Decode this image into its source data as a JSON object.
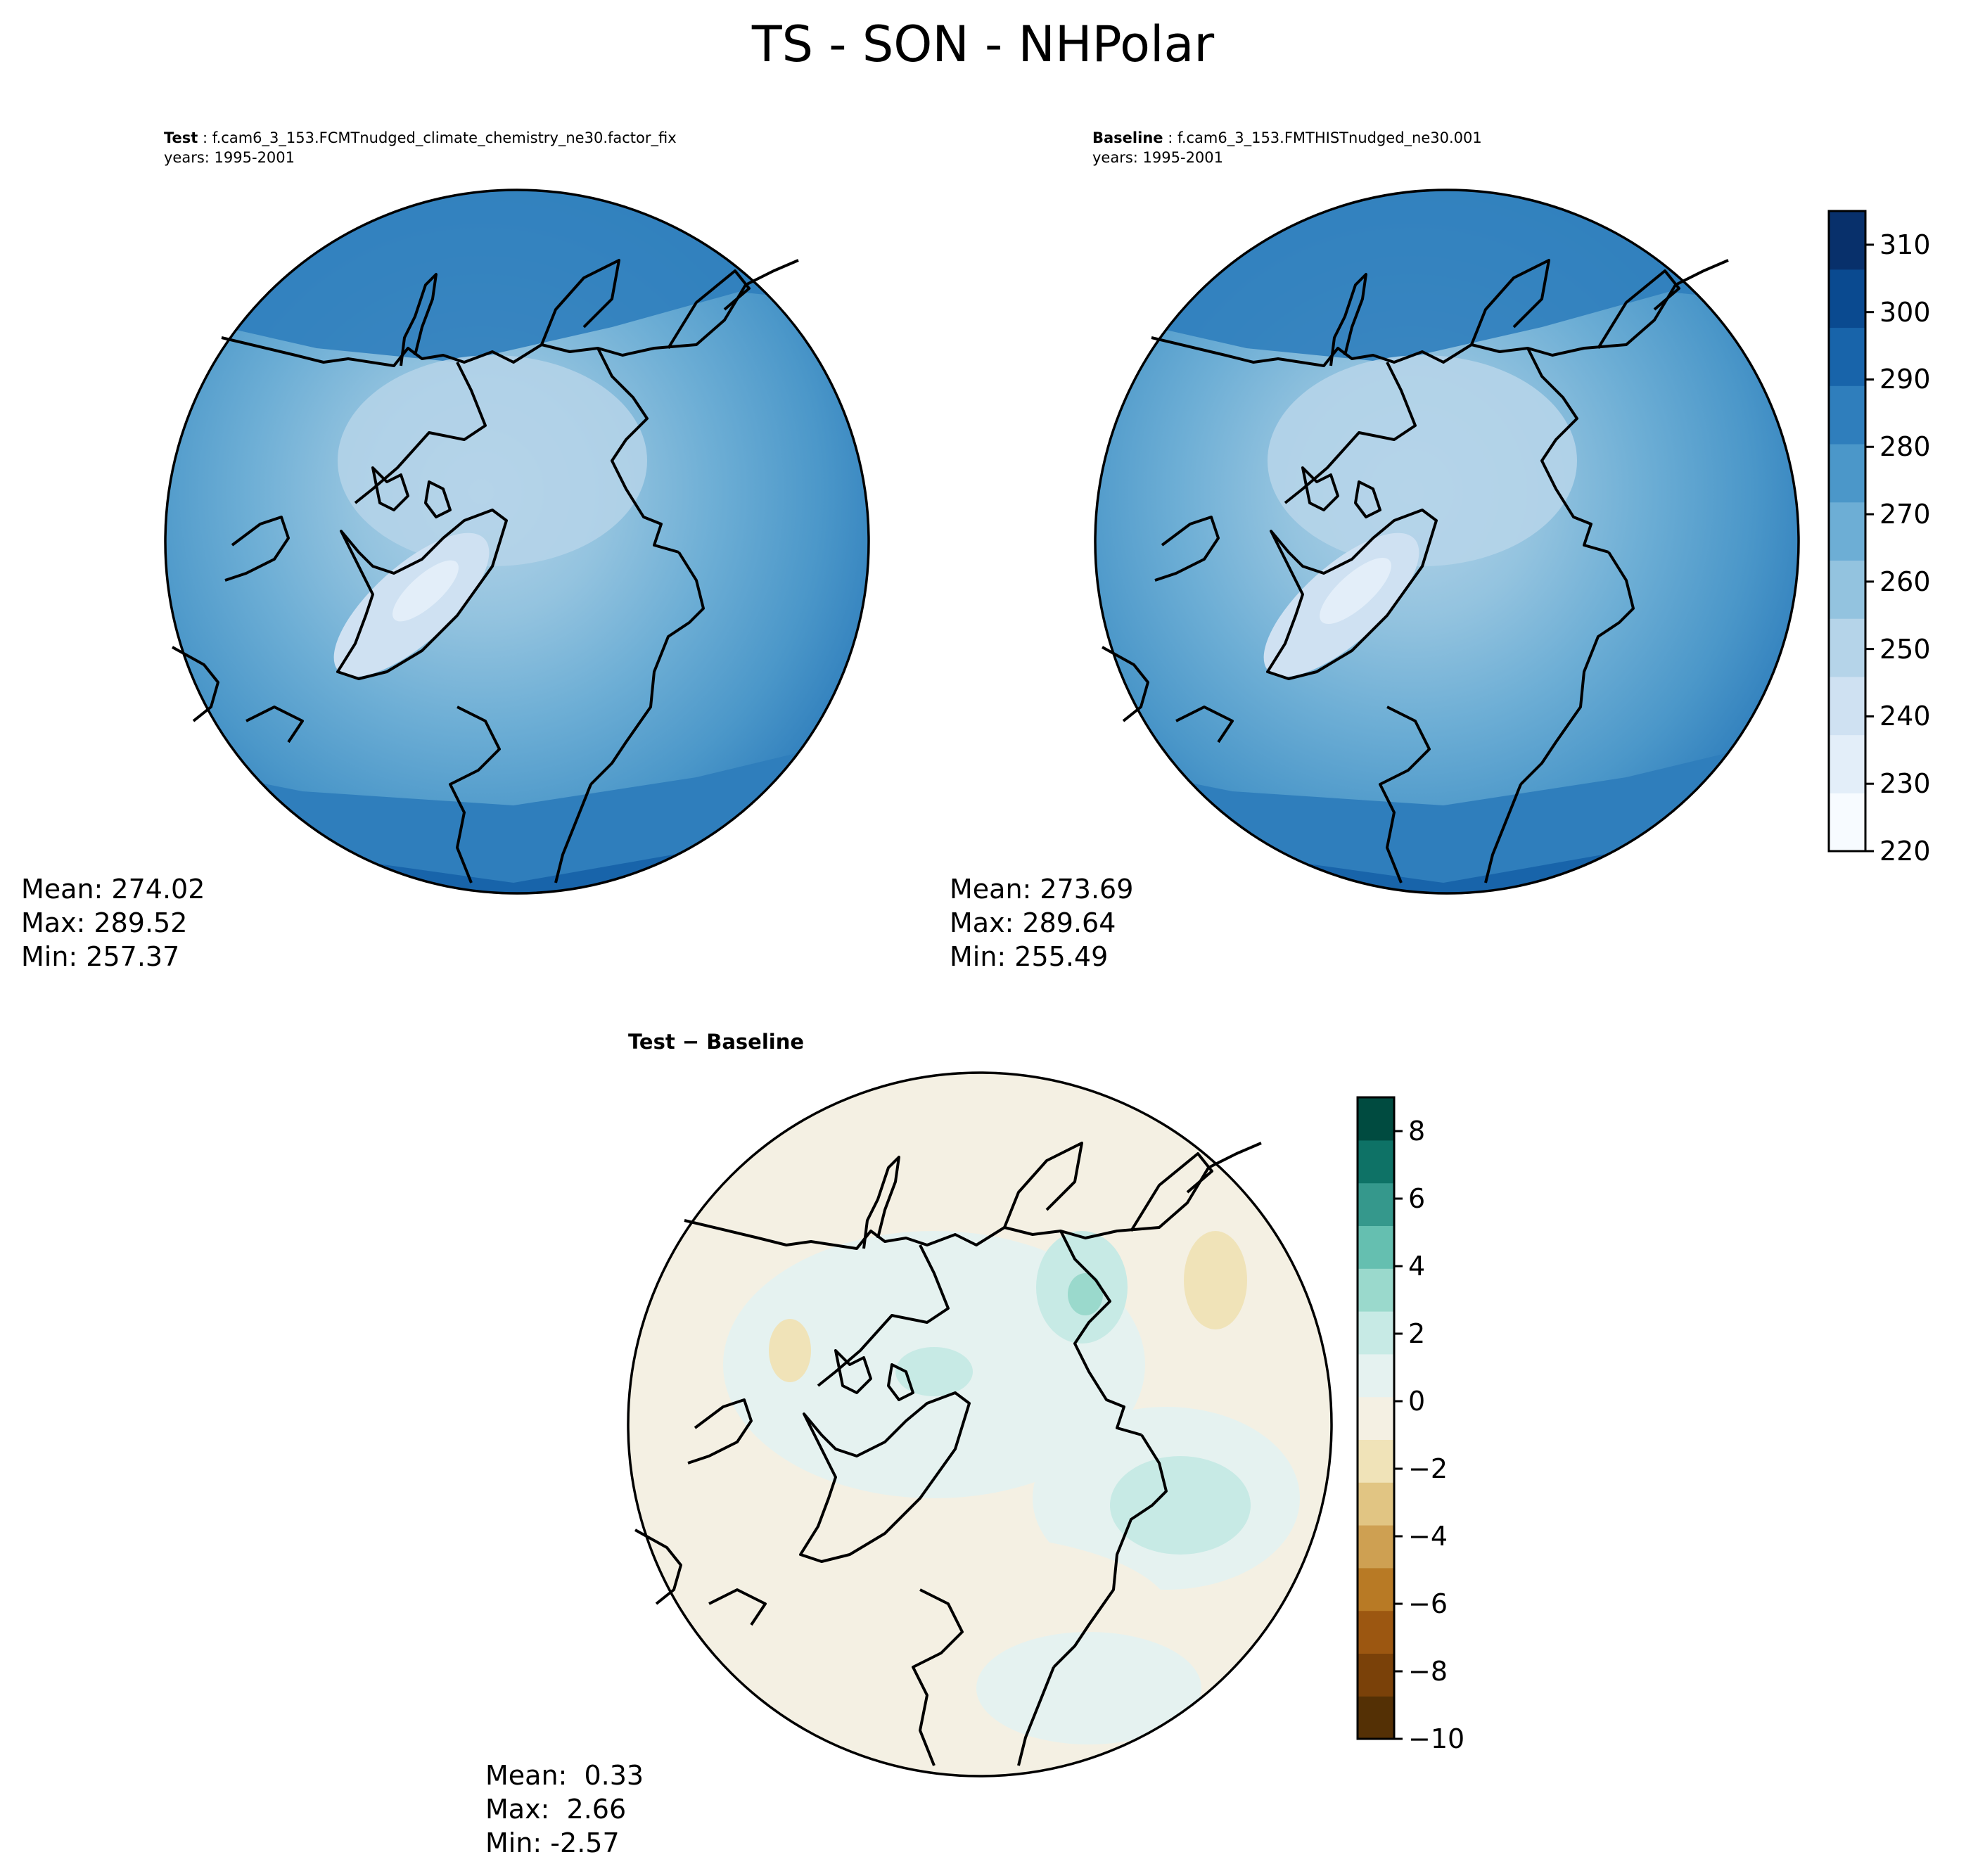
{
  "title": "TS - SON - NHPolar",
  "panels": {
    "test": {
      "label": "Test",
      "case": "f.cam6_3_153.FCMTnudged_climate_chemistry_ne30.factor_fix",
      "years": "years: 1995-2001",
      "stats": {
        "mean": "Mean: 274.02",
        "max": "Max: 289.52",
        "min": "Min: 257.37"
      }
    },
    "baseline": {
      "label": "Baseline",
      "case": "f.cam6_3_153.FMTHISTnudged_ne30.001",
      "years": "years: 1995-2001",
      "stats": {
        "mean": "Mean: 273.69",
        "max": "Max: 289.64",
        "min": "Min: 255.49"
      }
    },
    "diff": {
      "label": "Test − Baseline",
      "stats": {
        "mean": "Mean:  0.33",
        "max": "Max:  2.66",
        "min": "Min: -2.57"
      }
    }
  },
  "colorbars": {
    "main": {
      "range": [
        220,
        315
      ],
      "ticks": [
        "310",
        "300",
        "290",
        "280",
        "270",
        "260",
        "250",
        "240",
        "230",
        "220"
      ],
      "colors": [
        "#f7fbff",
        "#e3eef9",
        "#cfe1f2",
        "#b5d4e9",
        "#93c3df",
        "#6daed5",
        "#4b97c9",
        "#2f7ebc",
        "#1864aa",
        "#0a4a90",
        "#08306b"
      ]
    },
    "diff": {
      "range": [
        -10,
        9
      ],
      "ticks": [
        "8",
        "6",
        "4",
        "2",
        "0",
        "−2",
        "−4",
        "−6",
        "−8",
        "−10"
      ],
      "colors": [
        "#543005",
        "#7a4109",
        "#9c5711",
        "#b87a25",
        "#cea052",
        "#e1c583",
        "#f0e3b8",
        "#f4f0e3",
        "#e5f2f0",
        "#c7eae5",
        "#9ad9cc",
        "#65bfb0",
        "#35988c",
        "#0e7266",
        "#004b40"
      ]
    }
  }
}
